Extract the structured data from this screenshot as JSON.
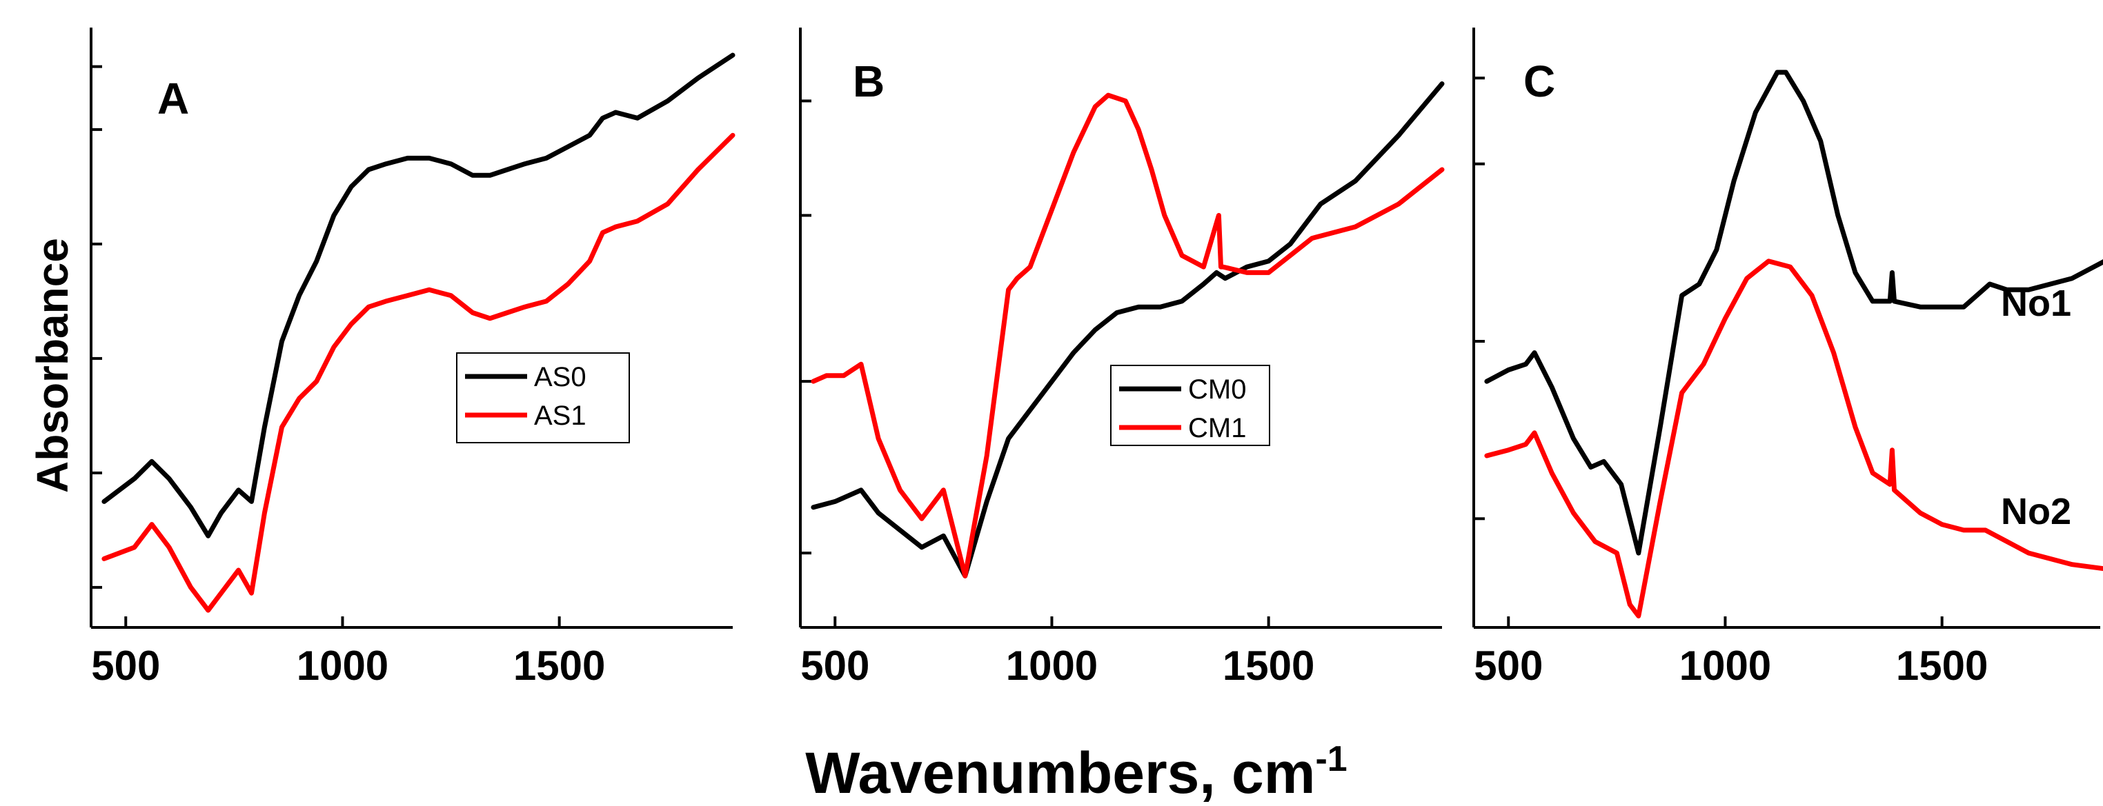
{
  "figure": {
    "y_label": "Absorbance",
    "x_label": "Wavenumbers, cm",
    "x_label_superscript": "-1"
  },
  "chart_data": [
    {
      "type": "line",
      "panel": "A",
      "title": "A",
      "xlabel": "Wavenumbers, cm-1",
      "ylabel": "Absorbance",
      "xlim": [
        420,
        1900
      ],
      "ylim": [
        0,
        1
      ],
      "x_ticks": [
        500,
        1000,
        1500
      ],
      "x_tick_labels": [
        "500",
        "1000",
        "1500"
      ],
      "y_ticks_unlabeled": [
        0.07,
        0.27,
        0.47,
        0.67,
        0.87,
        0.98
      ],
      "grid": false,
      "legend_position": "center-right",
      "legend": [
        "AS0",
        "AS1"
      ],
      "series": [
        {
          "name": "AS0",
          "color": "#000000",
          "x": [
            450,
            520,
            560,
            600,
            650,
            690,
            720,
            760,
            790,
            820,
            860,
            900,
            940,
            980,
            1020,
            1060,
            1100,
            1150,
            1200,
            1250,
            1300,
            1340,
            1380,
            1420,
            1470,
            1520,
            1570,
            1600,
            1630,
            1680,
            1750,
            1820,
            1900
          ],
          "values": [
            0.22,
            0.26,
            0.29,
            0.26,
            0.21,
            0.16,
            0.2,
            0.24,
            0.22,
            0.35,
            0.5,
            0.58,
            0.64,
            0.72,
            0.77,
            0.8,
            0.81,
            0.82,
            0.82,
            0.81,
            0.79,
            0.79,
            0.8,
            0.81,
            0.82,
            0.84,
            0.86,
            0.89,
            0.9,
            0.89,
            0.92,
            0.96,
            1.0
          ]
        },
        {
          "name": "AS1",
          "color": "#ff0000",
          "x": [
            450,
            520,
            560,
            600,
            650,
            690,
            720,
            760,
            790,
            820,
            860,
            900,
            940,
            980,
            1020,
            1060,
            1100,
            1150,
            1200,
            1250,
            1300,
            1340,
            1380,
            1420,
            1470,
            1520,
            1570,
            1600,
            1630,
            1680,
            1750,
            1820,
            1900
          ],
          "values": [
            0.12,
            0.14,
            0.18,
            0.14,
            0.07,
            0.03,
            0.06,
            0.1,
            0.06,
            0.2,
            0.35,
            0.4,
            0.43,
            0.49,
            0.53,
            0.56,
            0.57,
            0.58,
            0.59,
            0.58,
            0.55,
            0.54,
            0.55,
            0.56,
            0.57,
            0.6,
            0.64,
            0.69,
            0.7,
            0.71,
            0.74,
            0.8,
            0.86
          ]
        }
      ]
    },
    {
      "type": "line",
      "panel": "B",
      "title": "B",
      "xlabel": "Wavenumbers, cm-1",
      "ylabel": "Absorbance",
      "xlim": [
        420,
        1900
      ],
      "ylim": [
        0,
        1
      ],
      "x_ticks": [
        500,
        1000,
        1500
      ],
      "x_tick_labels": [
        "500",
        "1000",
        "1500"
      ],
      "y_ticks_unlabeled": [
        0.13,
        0.43,
        0.72,
        0.92
      ],
      "grid": false,
      "legend_position": "center",
      "legend": [
        "CM0",
        "CM1"
      ],
      "series": [
        {
          "name": "CM0",
          "color": "#000000",
          "x": [
            450,
            500,
            560,
            600,
            650,
            700,
            750,
            800,
            850,
            900,
            950,
            1000,
            1050,
            1100,
            1150,
            1200,
            1250,
            1300,
            1350,
            1380,
            1400,
            1450,
            1500,
            1550,
            1600,
            1620,
            1700,
            1800,
            1900
          ],
          "values": [
            0.21,
            0.22,
            0.24,
            0.2,
            0.17,
            0.14,
            0.16,
            0.09,
            0.22,
            0.33,
            0.38,
            0.43,
            0.48,
            0.52,
            0.55,
            0.56,
            0.56,
            0.57,
            0.6,
            0.62,
            0.61,
            0.63,
            0.64,
            0.67,
            0.72,
            0.74,
            0.78,
            0.86,
            0.95
          ]
        },
        {
          "name": "CM1",
          "color": "#ff0000",
          "x": [
            450,
            480,
            520,
            560,
            600,
            650,
            700,
            750,
            800,
            850,
            900,
            920,
            950,
            1000,
            1050,
            1100,
            1130,
            1170,
            1200,
            1230,
            1260,
            1300,
            1350,
            1385,
            1390,
            1395,
            1450,
            1500,
            1550,
            1600,
            1700,
            1800,
            1900
          ],
          "values": [
            0.43,
            0.44,
            0.44,
            0.46,
            0.33,
            0.24,
            0.19,
            0.24,
            0.09,
            0.3,
            0.59,
            0.61,
            0.63,
            0.73,
            0.83,
            0.91,
            0.93,
            0.92,
            0.87,
            0.8,
            0.72,
            0.65,
            0.63,
            0.72,
            0.63,
            0.63,
            0.62,
            0.62,
            0.65,
            0.68,
            0.7,
            0.74,
            0.8
          ]
        }
      ]
    },
    {
      "type": "line",
      "panel": "C",
      "title": "C",
      "xlabel": "Wavenumbers, cm-1",
      "ylabel": "Absorbance",
      "xlim": [
        420,
        1900
      ],
      "ylim": [
        0,
        1
      ],
      "x_ticks": [
        500,
        1000,
        1500
      ],
      "x_tick_labels": [
        "500",
        "1000",
        "1500"
      ],
      "y_ticks_unlabeled": [
        0.19,
        0.5,
        0.81,
        0.96
      ],
      "grid": false,
      "curve_labels": [
        "No1",
        "No2"
      ],
      "series": [
        {
          "name": "No1",
          "color": "#000000",
          "x": [
            450,
            500,
            540,
            560,
            600,
            650,
            690,
            720,
            760,
            800,
            850,
            900,
            940,
            980,
            1020,
            1070,
            1120,
            1140,
            1180,
            1220,
            1260,
            1300,
            1340,
            1380,
            1385,
            1390,
            1450,
            1500,
            1550,
            1610,
            1650,
            1700,
            1800,
            1900
          ],
          "values": [
            0.43,
            0.45,
            0.46,
            0.48,
            0.42,
            0.33,
            0.28,
            0.29,
            0.25,
            0.13,
            0.35,
            0.58,
            0.6,
            0.66,
            0.78,
            0.9,
            0.97,
            0.97,
            0.92,
            0.85,
            0.72,
            0.62,
            0.57,
            0.57,
            0.62,
            0.57,
            0.56,
            0.56,
            0.56,
            0.6,
            0.59,
            0.59,
            0.61,
            0.65
          ]
        },
        {
          "name": "No2",
          "color": "#ff0000",
          "x": [
            450,
            500,
            540,
            560,
            600,
            650,
            700,
            750,
            780,
            800,
            850,
            900,
            950,
            1000,
            1050,
            1100,
            1150,
            1200,
            1250,
            1300,
            1340,
            1380,
            1385,
            1390,
            1450,
            1500,
            1550,
            1600,
            1650,
            1700,
            1800,
            1900
          ],
          "values": [
            0.3,
            0.31,
            0.32,
            0.34,
            0.27,
            0.2,
            0.15,
            0.13,
            0.04,
            0.02,
            0.22,
            0.41,
            0.46,
            0.54,
            0.61,
            0.64,
            0.63,
            0.58,
            0.48,
            0.35,
            0.27,
            0.25,
            0.31,
            0.24,
            0.2,
            0.18,
            0.17,
            0.17,
            0.15,
            0.13,
            0.11,
            0.1
          ]
        }
      ]
    }
  ]
}
